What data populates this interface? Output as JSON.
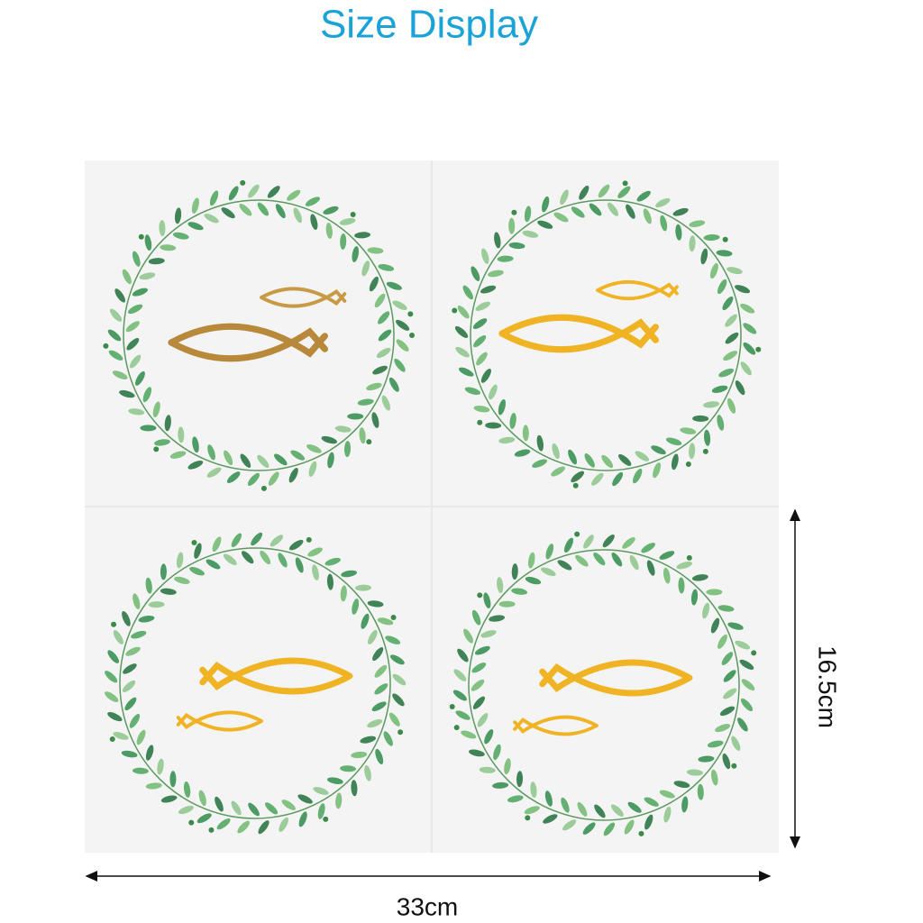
{
  "title": "Size Display",
  "dimensions": {
    "height": "16.5cm",
    "width": "33cm"
  }
}
